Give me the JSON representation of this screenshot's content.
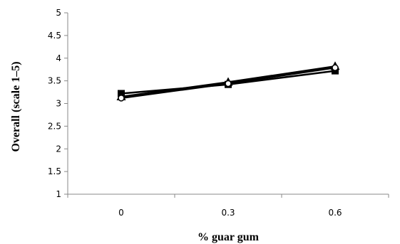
{
  "chart_data": {
    "type": "line",
    "xlabel": "% guar gum",
    "ylabel": "Overall (scale 1–5)",
    "categories": [
      "0",
      "0.3",
      "0.6"
    ],
    "ylim": [
      1,
      5
    ],
    "yticks": [
      "1",
      "1.5",
      "2",
      "2.5",
      "3",
      "3.5",
      "4",
      "4.5",
      "5"
    ],
    "grid": false,
    "legend": "none",
    "series": [
      {
        "marker": "square",
        "values": [
          3.22,
          3.42,
          3.72
        ]
      },
      {
        "marker": "triangle",
        "values": [
          3.15,
          3.47,
          3.82
        ]
      },
      {
        "marker": "circle",
        "values": [
          3.12,
          3.44,
          3.79
        ]
      }
    ],
    "line_color": "#000000"
  }
}
